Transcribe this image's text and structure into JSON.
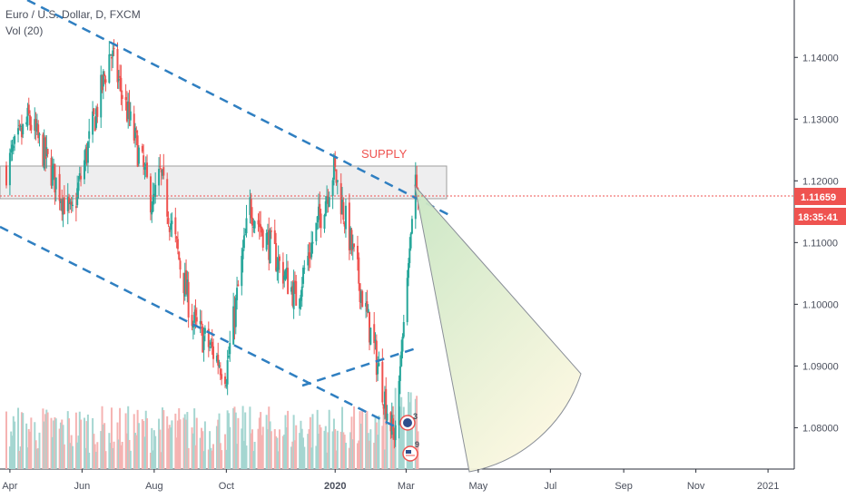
{
  "legend": {
    "symbol": "Euro / U.S. Dollar, D, FXCM",
    "volume": "Vol (20)"
  },
  "price_axis": {
    "ticks": [
      "1.14000",
      "1.13000",
      "1.12000",
      "1.11000",
      "1.10000",
      "1.09000",
      "1.08000"
    ],
    "last_price": "1.11659",
    "countdown": "18:35:41",
    "price_tag_color": "#ef5350"
  },
  "time_axis": {
    "ticks": [
      {
        "label": "Apr",
        "strong": false
      },
      {
        "label": "Jun",
        "strong": false
      },
      {
        "label": "Aug",
        "strong": false
      },
      {
        "label": "Oct",
        "strong": false
      },
      {
        "label": "2020",
        "strong": true
      },
      {
        "label": "Mar",
        "strong": false
      },
      {
        "label": "May",
        "strong": false
      },
      {
        "label": "Jul",
        "strong": false
      },
      {
        "label": "Sep",
        "strong": false
      },
      {
        "label": "Nov",
        "strong": false
      },
      {
        "label": "2021",
        "strong": false
      }
    ]
  },
  "annotations": {
    "supply_label": "SUPPLY",
    "supply_color": "#ef5350",
    "trendline_color": "#2f7fc1",
    "events": [
      {
        "icon": "dividend-flag-icon",
        "label": "3"
      },
      {
        "icon": "earnings-flag-icon",
        "label": "9"
      }
    ]
  },
  "colors": {
    "up": "#26a69a",
    "down": "#ef5350",
    "volume_up": "#a5d6d1",
    "volume_down": "#f5b3b2"
  },
  "chart_data": {
    "type": "candlestick",
    "symbol": "Euro / U.S. Dollar, D, FXCM",
    "interval": "D",
    "ylim": [
      1.0733,
      1.1493
    ],
    "price_scale_labels": [
      1.14,
      1.13,
      1.12,
      1.11,
      1.1,
      1.09,
      1.08
    ],
    "last_price": 1.11659,
    "x_axis_labels": [
      "Apr",
      "Jun",
      "Aug",
      "Oct",
      "2020",
      "Mar",
      "May",
      "Jul",
      "Sep",
      "Nov",
      "2021"
    ],
    "price_path_key_points": [
      {
        "date": "2019-03-29",
        "close": 1.122
      },
      {
        "date": "2019-04-17",
        "close": 1.13
      },
      {
        "date": "2019-05-23",
        "close": 1.114
      },
      {
        "date": "2019-06-25",
        "close": 1.141
      },
      {
        "date": "2019-07-31",
        "close": 1.116
      },
      {
        "date": "2019-08-06",
        "close": 1.121
      },
      {
        "date": "2019-09-03",
        "close": 1.097
      },
      {
        "date": "2019-10-01",
        "close": 1.089
      },
      {
        "date": "2019-10-21",
        "close": 1.116
      },
      {
        "date": "2019-11-29",
        "close": 1.101
      },
      {
        "date": "2019-12-31",
        "close": 1.122
      },
      {
        "date": "2020-02-20",
        "close": 1.078
      },
      {
        "date": "2020-03-09",
        "close": 1.121
      },
      {
        "date": "2020-03-11",
        "close": 1.1166
      }
    ],
    "supply_zone": {
      "from": "2019-03-29",
      "to": "2020-04-20",
      "price_low": 1.1167,
      "price_high": 1.1215,
      "label": "SUPPLY"
    },
    "trendlines": [
      {
        "from": {
          "date": "2019-03-29",
          "price": 1.152
        },
        "to": {
          "date": "2020-04-22",
          "price": 1.1137
        }
      },
      {
        "from": {
          "date": "2019-03-29",
          "price": 1.1115
        },
        "to": {
          "date": "2020-03-03",
          "price": 1.0765
        }
      },
      {
        "from": {
          "date": "2019-12-18",
          "price": 1.0848
        },
        "to": {
          "date": "2020-03-13",
          "price": 1.091
        }
      }
    ],
    "projection_sector": {
      "apex": {
        "date": "2020-03-14",
        "price": 1.1175
      },
      "edge_a": {
        "date": "2020-05-03",
        "price": 1.07
      },
      "edge_b": {
        "date": "2020-06-28",
        "price": 1.087
      }
    },
    "volume_indicator": "Vol (20)"
  }
}
